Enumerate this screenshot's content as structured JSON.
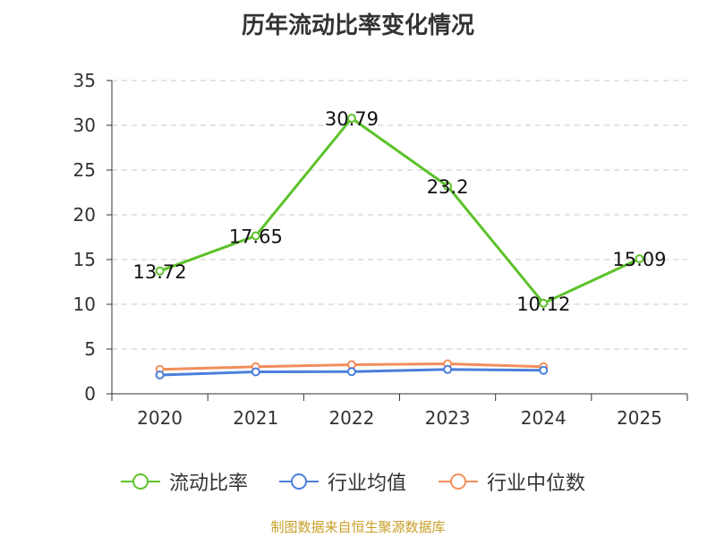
{
  "chart_data": {
    "type": "line",
    "title": "历年流动比率变化情况",
    "categories": [
      "2020",
      "2021",
      "2022",
      "2023",
      "2024",
      "2025"
    ],
    "ylim": [
      0,
      35
    ],
    "yticks": [
      0,
      5,
      10,
      15,
      20,
      25,
      30,
      35
    ],
    "grid": true,
    "legend_position": "bottom",
    "series": [
      {
        "name": "流动比率",
        "color": "#5cc22a",
        "values": [
          13.72,
          17.65,
          30.79,
          23.2,
          10.12,
          15.09
        ],
        "show_labels": true
      },
      {
        "name": "行业均值",
        "color": "#4a7fdc",
        "values": [
          2.1,
          2.45,
          2.48,
          2.72,
          2.62,
          null
        ],
        "show_labels": false
      },
      {
        "name": "行业中位数",
        "color": "#f28e5c",
        "values": [
          2.72,
          3.02,
          3.25,
          3.35,
          3.02,
          null
        ],
        "show_labels": false
      }
    ]
  },
  "source": "制图数据来自恒生聚源数据库"
}
